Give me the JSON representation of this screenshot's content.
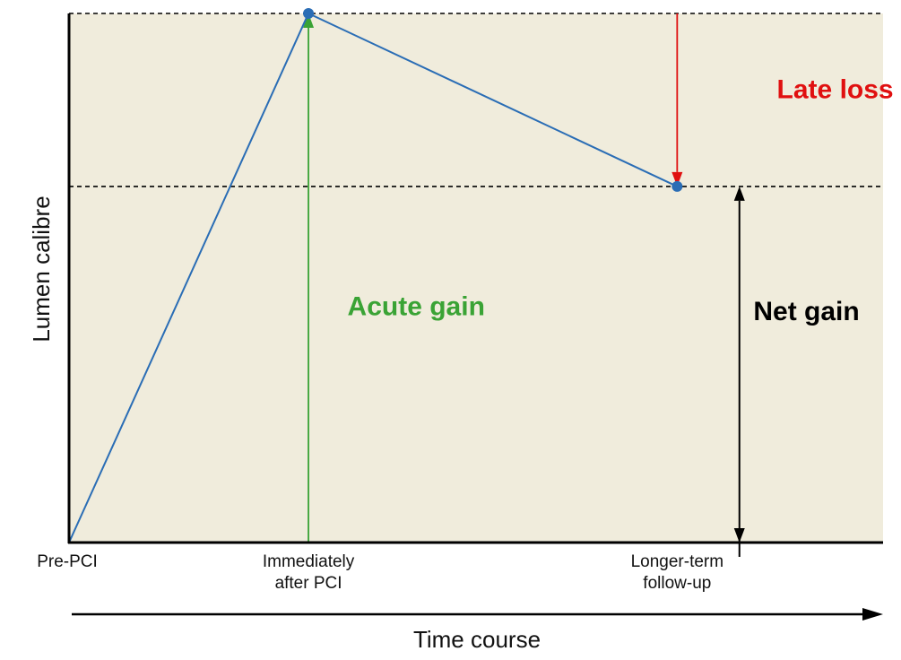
{
  "chart_data": {
    "type": "line",
    "title": "",
    "xlabel": "Time course",
    "ylabel": "Lumen calibre",
    "xlim": [
      0,
      3.4
    ],
    "ylim": [
      0,
      1
    ],
    "grid": false,
    "x_ticks": [
      {
        "x": 0,
        "lines": [
          "Pre-PCI"
        ]
      },
      {
        "x": 1,
        "lines": [
          "Immediately",
          "after PCI"
        ]
      },
      {
        "x": 2.54,
        "lines": [
          "Longer-term",
          "follow-up"
        ]
      }
    ],
    "series": [
      {
        "name": "Lumen calibre",
        "color": "#2a6db5",
        "points": [
          [
            0,
            0
          ],
          [
            1,
            1
          ],
          [
            2.54,
            0.673
          ]
        ]
      }
    ],
    "reference_lines": [
      {
        "y": 1,
        "style": "dashed"
      },
      {
        "y": 0.673,
        "style": "dashed"
      }
    ],
    "annotations": [
      {
        "label": "Acute gain",
        "color": "#3aa335",
        "arrow_x": 1,
        "from_y": 0,
        "to_y": 1,
        "label_x": 1.45,
        "label_y": 0.43
      },
      {
        "label": "Late loss",
        "color": "#e01010",
        "arrow_x": 2.54,
        "from_y": 1,
        "to_y": 0.673,
        "label_x": 3.2,
        "label_y": 0.84
      },
      {
        "label": "Net gain",
        "color": "#000000",
        "arrow_x": 2.8,
        "from_y": 0,
        "to_y": 0.673,
        "label_x": 3.08,
        "label_y": 0.42,
        "double": true
      }
    ],
    "background": "#f0ecdc"
  }
}
